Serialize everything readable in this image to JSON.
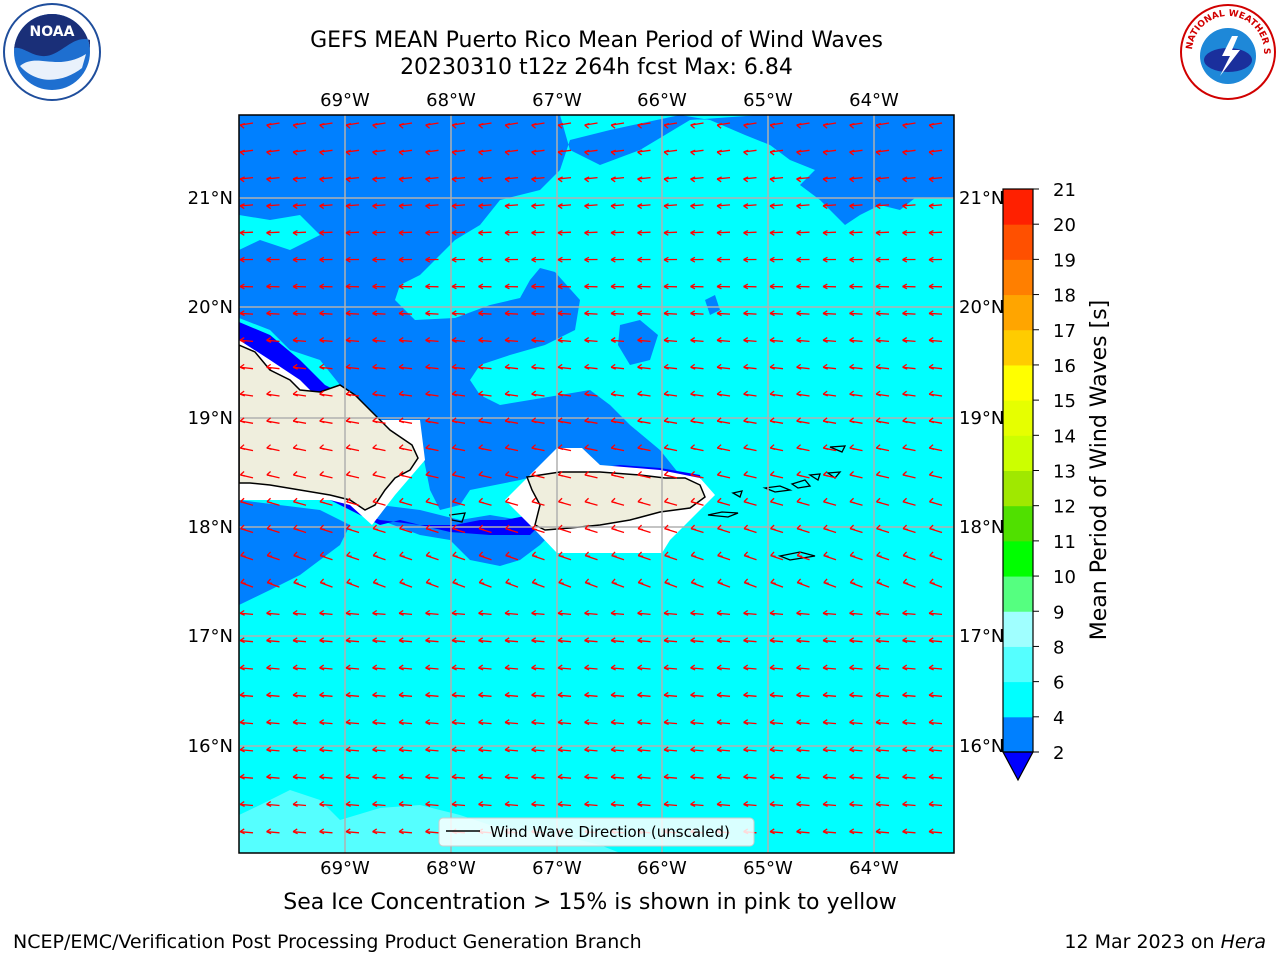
{
  "title": {
    "line1": "GEFS MEAN Puerto Rico Mean Period of Wind Waves",
    "line2": "20230310 t12z 264h fcst   Max: 6.84"
  },
  "map": {
    "lon_labels": [
      "69°W",
      "68°W",
      "67°W",
      "66°W",
      "65°W",
      "64°W"
    ],
    "lat_labels": [
      "21°N",
      "20°N",
      "19°N",
      "18°N",
      "17°N",
      "16°N"
    ],
    "legend_label": "Wind Wave Direction (unscaled)",
    "colors": {
      "land": "#efeedd",
      "ocean_light": "#00ffff",
      "ocean_mid": "#0080ff",
      "ocean_deep": "#0000ff",
      "ocean_pale": "#55ffff",
      "arrow": "#ff0000",
      "grid": "#b0b0b0"
    }
  },
  "colorbar": {
    "label": "Mean Period of Wind Waves [s]",
    "ticks": [
      "2",
      "4",
      "6",
      "8",
      "9",
      "10",
      "11",
      "12",
      "13",
      "14",
      "15",
      "16",
      "17",
      "18",
      "19",
      "20",
      "21"
    ],
    "colors": [
      "#0000ff",
      "#0080ff",
      "#00ffff",
      "#55ffff",
      "#a0ffff",
      "#55ff80",
      "#00ff00",
      "#50e000",
      "#a0e800",
      "#ccff00",
      "#e6ff00",
      "#ffff00",
      "#ffcc00",
      "#ffa500",
      "#ff7f00",
      "#ff5000",
      "#ff2000",
      "#ff0000"
    ]
  },
  "note": "Sea Ice Concentration > 15% is shown in pink to yellow",
  "footer": {
    "left": "NCEP/EMC/Verification Post Processing Product Generation Branch",
    "right_prefix": "12 Mar 2023 on ",
    "right_host": "Hera"
  },
  "logos": {
    "noaa_text": "NOAA",
    "nws_text": "NATIONAL WEATHER SERVICE"
  }
}
